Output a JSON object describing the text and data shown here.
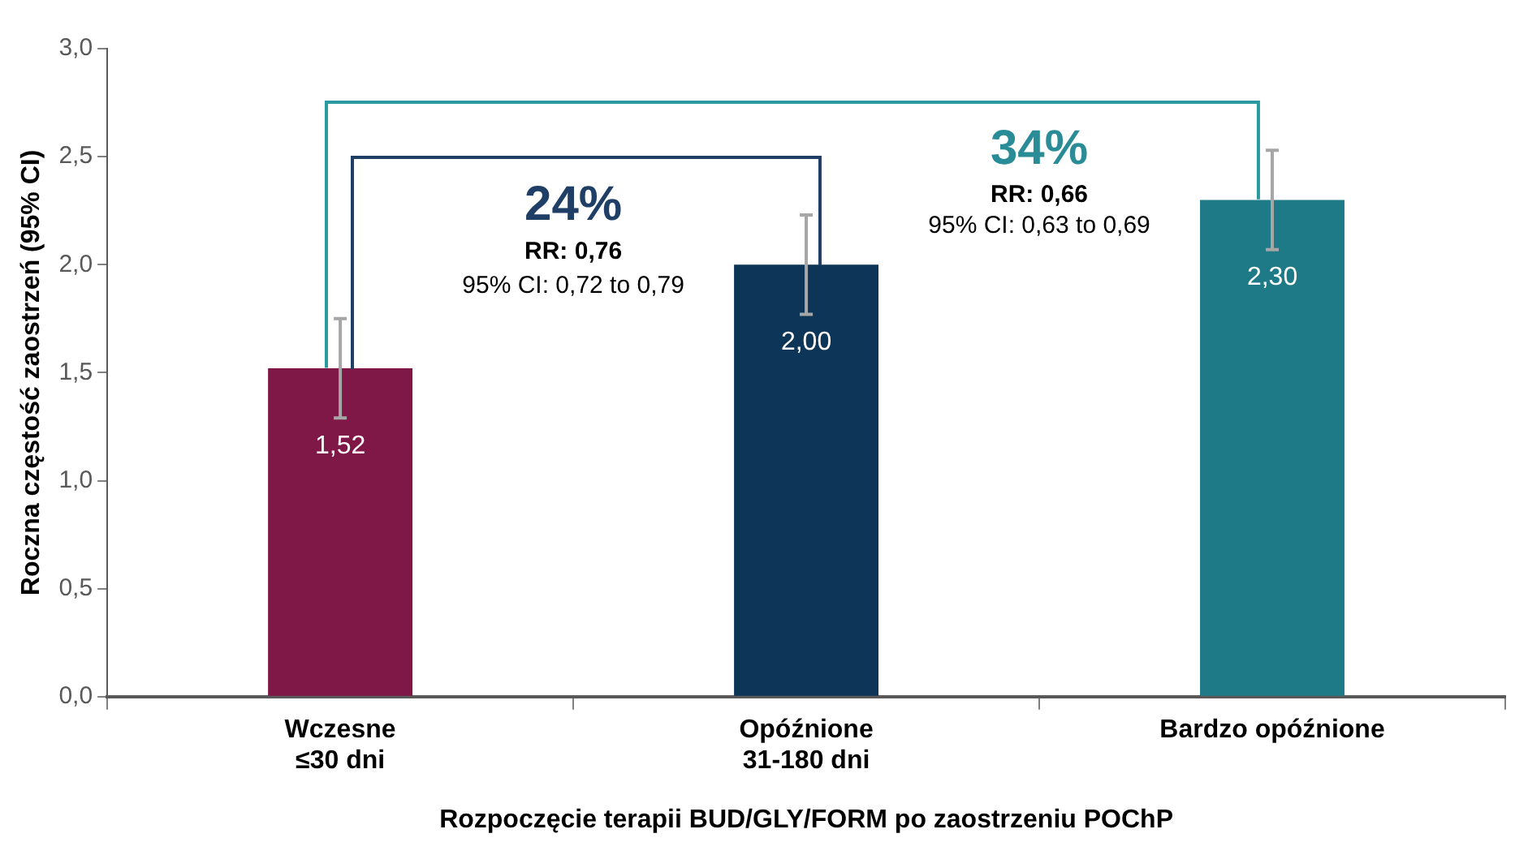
{
  "chart_data": {
    "type": "bar",
    "xlabel": "Rozpoczęcie terapii BUD/GLY/FORM po zaostrzeniu POChP",
    "ylabel": "Roczna częstość zaostrzeń (95% CI)",
    "categories": [
      "Wczesne\n≤30 dni",
      "Opóźnione\n31-180 dni",
      "Bardzo opóźnione"
    ],
    "values": [
      1.52,
      2.0,
      2.3
    ],
    "colors": [
      "#7f1747",
      "#0d3558",
      "#1e7a87"
    ],
    "errors": [
      [
        1.29,
        1.75
      ],
      [
        1.77,
        2.23
      ],
      [
        2.07,
        2.53
      ]
    ],
    "value_labels": [
      "1,52",
      "2,00",
      "2,30"
    ],
    "ylim": [
      0,
      3
    ],
    "yticks": [
      {
        "value": 0,
        "label": "0,0"
      },
      {
        "value": 0.5,
        "label": "0,5"
      },
      {
        "value": 1,
        "label": "1,0"
      },
      {
        "value": 1.5,
        "label": "1,5"
      },
      {
        "value": 2,
        "label": "2,0"
      },
      {
        "value": 2.5,
        "label": "2,5"
      },
      {
        "value": 3,
        "label": "3,0"
      }
    ],
    "annotations": [
      "24%",
      "RR: 0,76",
      "95% CI: 0,72 to 0,79",
      "34%",
      "RR: 0,66",
      "95% CI: 0,63 to 0,69"
    ],
    "grid": false,
    "legend": false
  }
}
